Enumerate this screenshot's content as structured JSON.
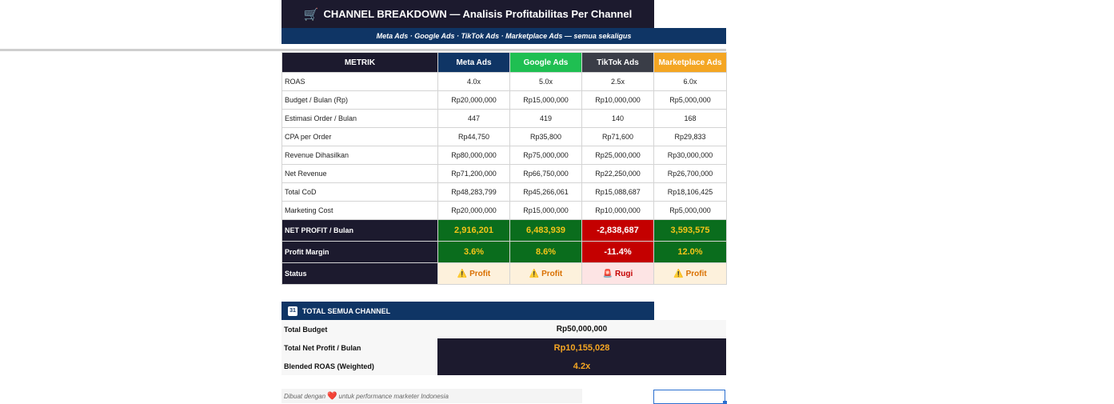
{
  "header": {
    "title": "CHANNEL BREAKDOWN — Analisis Profitabilitas Per Channel",
    "title_icon": "shopping-cart-icon",
    "subtitle": "Meta Ads · Google Ads · TikTok Ads · Marketplace Ads — semua sekaligus"
  },
  "table": {
    "columns": [
      "METRIK",
      "Meta Ads",
      "Google Ads",
      "TikTok Ads",
      "Marketplace Ads"
    ],
    "rows": [
      {
        "label": "ROAS",
        "values": [
          "4.0x",
          "5.0x",
          "2.5x",
          "6.0x"
        ]
      },
      {
        "label": "Budget / Bulan (Rp)",
        "values": [
          "Rp20,000,000",
          "Rp15,000,000",
          "Rp10,000,000",
          "Rp5,000,000"
        ]
      },
      {
        "label": "Estimasi Order / Bulan",
        "values": [
          "447",
          "419",
          "140",
          "168"
        ]
      },
      {
        "label": "CPA per Order",
        "values": [
          "Rp44,750",
          "Rp35,800",
          "Rp71,600",
          "Rp29,833"
        ]
      },
      {
        "label": "Revenue Dihasilkan",
        "values": [
          "Rp80,000,000",
          "Rp75,000,000",
          "Rp25,000,000",
          "Rp30,000,000"
        ]
      },
      {
        "label": "Net Revenue",
        "values": [
          "Rp71,200,000",
          "Rp66,750,000",
          "Rp22,250,000",
          "Rp26,700,000"
        ]
      },
      {
        "label": "Total CoD",
        "values": [
          "Rp48,283,799",
          "Rp45,266,061",
          "Rp15,088,687",
          "Rp18,106,425"
        ]
      },
      {
        "label": "Marketing Cost",
        "values": [
          "Rp20,000,000",
          "Rp15,000,000",
          "Rp10,000,000",
          "Rp5,000,000"
        ]
      }
    ],
    "net_profit": {
      "label": "NET PROFIT / Bulan",
      "values": [
        "2,916,201",
        "6,483,939",
        "-2,838,687",
        "3,593,575"
      ]
    },
    "profit_margin": {
      "label": "Profit Margin",
      "values": [
        "3.6%",
        "8.6%",
        "-11.4%",
        "12.0%"
      ]
    },
    "status": {
      "label": "Status",
      "items": [
        {
          "text": "Profit",
          "icon": "warning-icon",
          "glyph": "⚠️"
        },
        {
          "text": "Profit",
          "icon": "warning-icon",
          "glyph": "⚠️"
        },
        {
          "text": "Rugi",
          "icon": "siren-icon",
          "glyph": "🚨"
        },
        {
          "text": "Profit",
          "icon": "warning-icon",
          "glyph": "⚠️"
        }
      ]
    }
  },
  "totals": {
    "title": "TOTAL SEMUA CHANNEL",
    "title_icon": "calendar-icon",
    "calendar_glyph": "31",
    "budget_label": "Total Budget",
    "budget_value": "Rp50,000,000",
    "net_profit_label": "Total Net Profit / Bulan",
    "net_profit_value": "Rp10,155,028",
    "roas_label": "Blended ROAS (Weighted)",
    "roas_value": "4.2x"
  },
  "footer": {
    "before": "Dibuat dengan",
    "heart_glyph": "❤️",
    "after": "untuk performance marketer Indonesia"
  },
  "colors": {
    "dark_navy": "#1c1a2e",
    "blue": "#0f3565",
    "green_header": "#1fbf52",
    "tiktok_gray": "#3a3d47",
    "marketplace_orange": "#f4a623",
    "profit_green": "#0a6d1d",
    "loss_red": "#c40000",
    "gold_text": "#f5c518"
  }
}
